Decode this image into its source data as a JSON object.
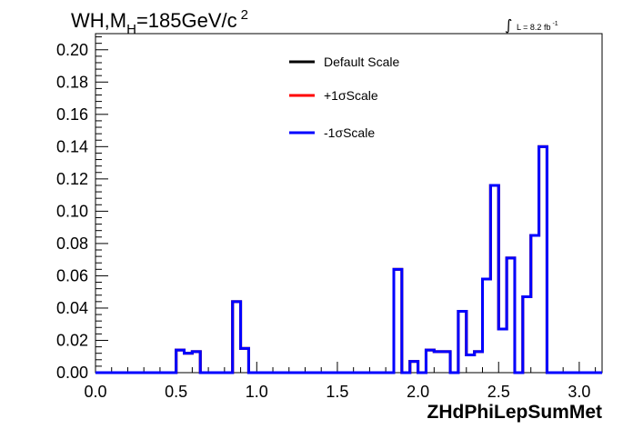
{
  "chart_data": {
    "type": "line",
    "title_main": "WH,M",
    "title_sub": "H",
    "title_rest": "=185GeV/c",
    "title_sup": "2",
    "lumi_label": "L = 8.2 fb",
    "lumi_sup": "-1",
    "xlabel": "ZHdPhiLepSumMet",
    "xlim": [
      0.0,
      3.1416
    ],
    "ylim": [
      0.0,
      0.21
    ],
    "x_ticks": [
      "0.0",
      "0.5",
      "1.0",
      "1.5",
      "2.0",
      "2.5",
      "3.0"
    ],
    "x_tick_values": [
      0.0,
      0.5,
      1.0,
      1.5,
      2.0,
      2.5,
      3.0
    ],
    "y_ticks": [
      "0.00",
      "0.02",
      "0.04",
      "0.06",
      "0.08",
      "0.10",
      "0.12",
      "0.14",
      "0.16",
      "0.18",
      "0.20"
    ],
    "y_tick_values": [
      0.0,
      0.02,
      0.04,
      0.06,
      0.08,
      0.1,
      0.12,
      0.14,
      0.16,
      0.18,
      0.2
    ],
    "bin_edges": [
      0.0,
      0.05,
      0.1,
      0.15,
      0.2,
      0.25,
      0.3,
      0.35,
      0.4,
      0.45,
      0.5,
      0.55,
      0.6,
      0.65,
      0.7,
      0.75,
      0.8,
      0.85,
      0.9,
      0.95,
      1.0,
      1.05,
      1.1,
      1.15,
      1.2,
      1.25,
      1.3,
      1.35,
      1.4,
      1.45,
      1.5,
      1.55,
      1.6,
      1.65,
      1.7,
      1.75,
      1.8,
      1.85,
      1.9,
      1.95,
      2.0,
      2.05,
      2.1,
      2.15,
      2.2,
      2.25,
      2.3,
      2.35,
      2.4,
      2.45,
      2.5,
      2.55,
      2.6,
      2.65,
      2.7,
      2.75,
      2.8,
      2.85,
      2.9,
      2.95,
      3.0,
      3.05,
      3.1416
    ],
    "series": [
      {
        "name": "Default Scale",
        "color": "#000000",
        "values": [
          0,
          0,
          0,
          0,
          0,
          0,
          0,
          0,
          0,
          0,
          0.014,
          0.012,
          0.013,
          0,
          0,
          0,
          0,
          0.044,
          0.015,
          0,
          0,
          0,
          0,
          0,
          0,
          0,
          0,
          0,
          0,
          0,
          0,
          0,
          0,
          0,
          0,
          0,
          0,
          0.064,
          0,
          0.007,
          0,
          0.014,
          0.013,
          0.013,
          0,
          0.038,
          0.011,
          0.013,
          0.058,
          0.116,
          0.027,
          0.071,
          0,
          0.047,
          0.085,
          0.14,
          0,
          0,
          0,
          0,
          0,
          0
        ]
      },
      {
        "name": "+1σScale",
        "color": "#ff0000",
        "values": [
          0,
          0,
          0,
          0,
          0,
          0,
          0,
          0,
          0,
          0,
          0.014,
          0.012,
          0.013,
          0,
          0,
          0,
          0,
          0.044,
          0.015,
          0,
          0,
          0,
          0,
          0,
          0,
          0,
          0,
          0,
          0,
          0,
          0,
          0,
          0,
          0,
          0,
          0,
          0,
          0.064,
          0,
          0.007,
          0,
          0.014,
          0.013,
          0.013,
          0,
          0.038,
          0.011,
          0.013,
          0.058,
          0.116,
          0.027,
          0.071,
          0,
          0.047,
          0.085,
          0.14,
          0,
          0,
          0,
          0,
          0,
          0
        ]
      },
      {
        "name": "-1σScale",
        "color": "#0000ff",
        "values": [
          0,
          0,
          0,
          0,
          0,
          0,
          0,
          0,
          0,
          0,
          0.014,
          0.012,
          0.013,
          0,
          0,
          0,
          0,
          0.044,
          0.015,
          0,
          0,
          0,
          0,
          0,
          0,
          0,
          0,
          0,
          0,
          0,
          0,
          0,
          0,
          0,
          0,
          0,
          0,
          0.064,
          0,
          0.007,
          0,
          0.014,
          0.013,
          0.013,
          0,
          0.038,
          0.011,
          0.013,
          0.058,
          0.116,
          0.027,
          0.071,
          0,
          0.047,
          0.085,
          0.14,
          0,
          0,
          0,
          0,
          0,
          0
        ]
      }
    ],
    "legend_position": "top-center",
    "grid": false
  }
}
